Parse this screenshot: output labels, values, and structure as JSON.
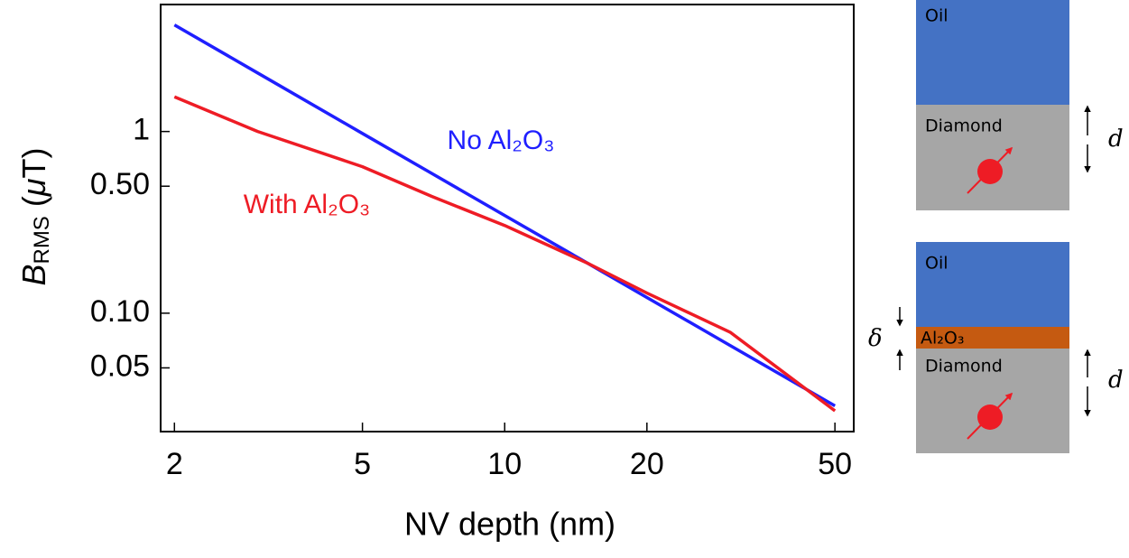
{
  "chart_data": {
    "type": "line",
    "xlabel": "NV depth (nm)",
    "ylabel_parts": [
      "B",
      "RMS",
      " (",
      "μ",
      "T)"
    ],
    "x": [
      2,
      3,
      5,
      7,
      10,
      15,
      20,
      30,
      50
    ],
    "series": [
      {
        "name": "No Al₂O₃",
        "color": "#1f1fff",
        "values": [
          3.86,
          2.1,
          0.976,
          0.589,
          0.345,
          0.188,
          0.122,
          0.0664,
          0.0309
        ]
      },
      {
        "name": "With Al₂O₃",
        "color": "#ee1c25",
        "values": [
          1.55,
          1.0,
          0.64,
          0.44,
          0.304,
          0.188,
          0.129,
          0.0786,
          0.029
        ]
      }
    ],
    "xlim": [
      1.87,
      54.8
    ],
    "ylim": [
      0.0223,
      5.0
    ],
    "xticks": [
      2,
      5,
      10,
      20,
      50
    ],
    "yticks": [
      1,
      {
        "value": 0.5,
        "label": "0.50"
      },
      {
        "value": 0.1,
        "label": "0.10"
      },
      0.05
    ],
    "xlog": true,
    "ylog": true,
    "grid": false
  },
  "diagrams": [
    {
      "top": "Oil",
      "bottom": "Diamond",
      "depth": "d"
    },
    {
      "top": "Oil",
      "layer": "Al₂O₃",
      "bottom": "Diamond",
      "depth": "d",
      "thickness": "δ"
    }
  ]
}
